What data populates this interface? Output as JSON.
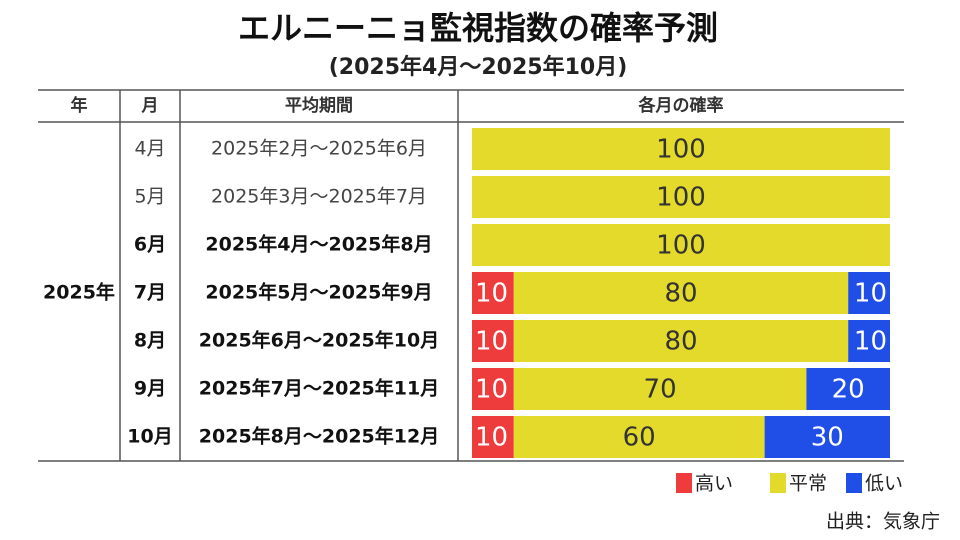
{
  "title": "エルニーニョ監視指数の確率予測",
  "subtitle": "(2025年4月～2025年10月)",
  "table": {
    "headers": [
      "年",
      "月",
      "平均期間",
      "各月の確率"
    ],
    "year": "2025年",
    "rows": [
      {
        "month": "4月",
        "period": "2025年2月～2025年6月",
        "bold": false,
        "values": [
          0,
          100,
          0
        ]
      },
      {
        "month": "5月",
        "period": "2025年3月～2025年7月",
        "bold": false,
        "values": [
          0,
          100,
          0
        ]
      },
      {
        "month": "6月",
        "period": "2025年4月～2025年8月",
        "bold": true,
        "values": [
          0,
          100,
          0
        ]
      },
      {
        "month": "7月",
        "period": "2025年5月～2025年9月",
        "bold": true,
        "values": [
          10,
          80,
          10
        ]
      },
      {
        "month": "8月",
        "period": "2025年6月～2025年10月",
        "bold": true,
        "values": [
          10,
          80,
          10
        ]
      },
      {
        "month": "9月",
        "period": "2025年7月～2025年11月",
        "bold": true,
        "values": [
          10,
          70,
          20
        ]
      },
      {
        "month": "10月",
        "period": "2025年8月～2025年12月",
        "bold": true,
        "values": [
          10,
          60,
          30
        ]
      }
    ]
  },
  "legend": [
    {
      "name": "高い",
      "color": "#ee3b3b"
    },
    {
      "name": "平常",
      "color": "#e4da2c"
    },
    {
      "name": "低い",
      "color": "#1f4fe6"
    }
  ],
  "source": "出典：気象庁"
}
